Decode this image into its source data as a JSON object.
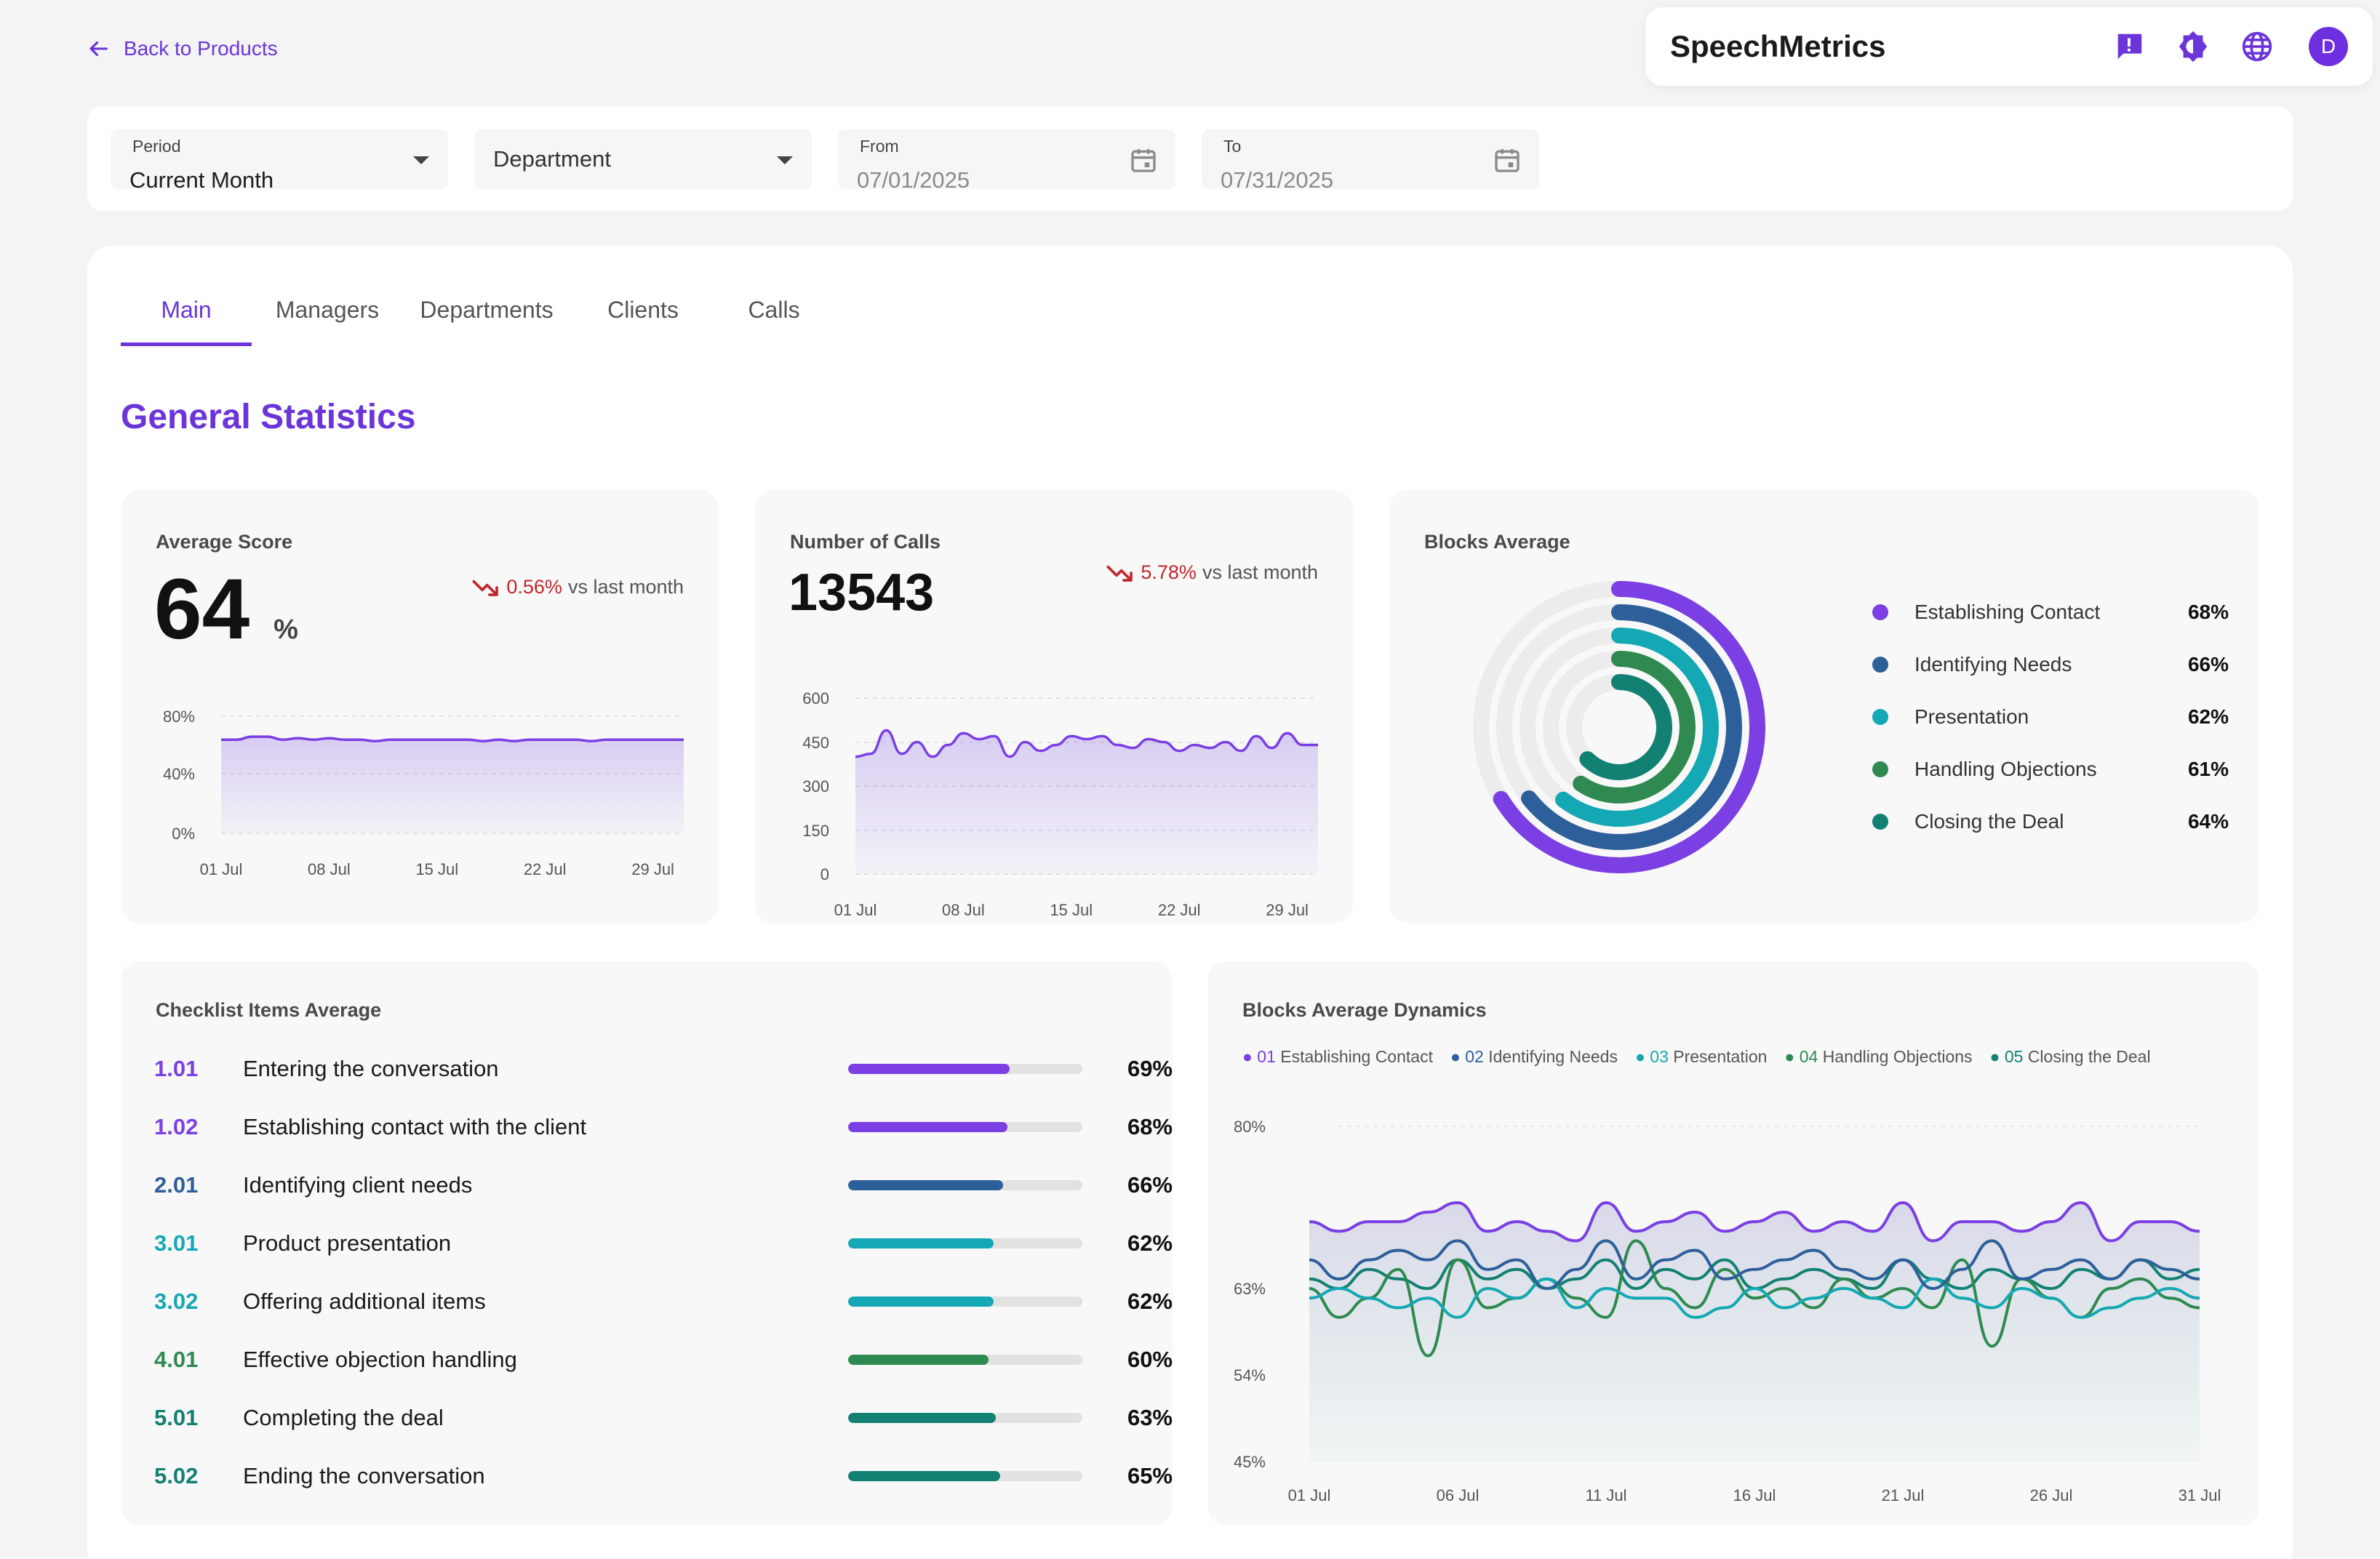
{
  "nav": {
    "back_label": "Back to Products"
  },
  "brandbar": {
    "brand": "SpeechMetrics",
    "icons": [
      "feedback-icon",
      "theme-icon",
      "globe-icon"
    ],
    "avatar_initial": "D"
  },
  "filters": {
    "period_label": "Period",
    "period_value": "Current Month",
    "department_placeholder": "Department",
    "from_label": "From",
    "from_value": "07/01/2025",
    "to_label": "To",
    "to_value": "07/31/2025"
  },
  "tabs": [
    "Main",
    "Managers",
    "Departments",
    "Clients",
    "Calls"
  ],
  "active_tab": "Main",
  "section_title": "General Statistics",
  "avg_score": {
    "title": "Average Score",
    "value": "64",
    "unit": "%",
    "delta": "0.56%",
    "delta_suffix": "vs last month",
    "y_ticks": [
      "80%",
      "40%",
      "0%"
    ],
    "x_ticks": [
      "01 Jul",
      "08 Jul",
      "15 Jul",
      "22 Jul",
      "29 Jul"
    ]
  },
  "calls": {
    "title": "Number of Calls",
    "value": "13543",
    "delta": "5.78%",
    "delta_suffix": "vs last month",
    "y_ticks": [
      "600",
      "450",
      "300",
      "150",
      "0"
    ],
    "x_ticks": [
      "01 Jul",
      "08 Jul",
      "15 Jul",
      "22 Jul",
      "29 Jul"
    ]
  },
  "blocks_avg": {
    "title": "Blocks Average",
    "items": [
      {
        "label": "Establishing Contact",
        "pct": "68%",
        "value": 68,
        "color": "#7b3fe4"
      },
      {
        "label": "Identifying Needs",
        "pct": "66%",
        "value": 66,
        "color": "#2d5f9a"
      },
      {
        "label": "Presentation",
        "pct": "62%",
        "value": 62,
        "color": "#14a8b4"
      },
      {
        "label": "Handling Objections",
        "pct": "61%",
        "value": 61,
        "color": "#2e8a50"
      },
      {
        "label": "Closing the Deal",
        "pct": "64%",
        "value": 64,
        "color": "#128073"
      }
    ]
  },
  "checklist": {
    "title": "Checklist Items Average",
    "rows": [
      {
        "num": "1.01",
        "text": "Entering the conversation",
        "pct": "69%",
        "value": 69,
        "color": "#7b3fe4"
      },
      {
        "num": "1.02",
        "text": "Establishing contact with the client",
        "pct": "68%",
        "value": 68,
        "color": "#7b3fe4"
      },
      {
        "num": "2.01",
        "text": "Identifying client needs",
        "pct": "66%",
        "value": 66,
        "color": "#2d5f9a"
      },
      {
        "num": "3.01",
        "text": "Product presentation",
        "pct": "62%",
        "value": 62,
        "color": "#14a8b4"
      },
      {
        "num": "3.02",
        "text": "Offering additional items",
        "pct": "62%",
        "value": 62,
        "color": "#14a8b4"
      },
      {
        "num": "4.01",
        "text": "Effective objection handling",
        "pct": "60%",
        "value": 60,
        "color": "#2e8a50"
      },
      {
        "num": "5.01",
        "text": "Completing the deal",
        "pct": "63%",
        "value": 63,
        "color": "#128073"
      },
      {
        "num": "5.02",
        "text": "Ending the conversation",
        "pct": "65%",
        "value": 65,
        "color": "#128073"
      }
    ]
  },
  "dynamics": {
    "title": "Blocks Average Dynamics",
    "legend": [
      {
        "num": "01",
        "label": "Establishing Contact",
        "color": "#7b3fe4"
      },
      {
        "num": "02",
        "label": "Identifying Needs",
        "color": "#2d5f9a"
      },
      {
        "num": "03",
        "label": "Presentation",
        "color": "#14a8b4"
      },
      {
        "num": "04",
        "label": "Handling Objections",
        "color": "#2e8a50"
      },
      {
        "num": "05",
        "label": "Closing the Deal",
        "color": "#128073"
      }
    ],
    "y_ticks": [
      "80%",
      "63%",
      "54%",
      "45%"
    ],
    "x_ticks": [
      "01 Jul",
      "06 Jul",
      "11 Jul",
      "16 Jul",
      "21 Jul",
      "26 Jul",
      "31 Jul"
    ]
  },
  "chart_data": [
    {
      "type": "area",
      "title": "Average Score",
      "x": [
        "01 Jul",
        "02 Jul",
        "03 Jul",
        "04 Jul",
        "05 Jul",
        "06 Jul",
        "07 Jul",
        "08 Jul",
        "09 Jul",
        "10 Jul",
        "11 Jul",
        "12 Jul",
        "13 Jul",
        "14 Jul",
        "15 Jul",
        "16 Jul",
        "17 Jul",
        "18 Jul",
        "19 Jul",
        "20 Jul",
        "21 Jul",
        "22 Jul",
        "23 Jul",
        "24 Jul",
        "25 Jul",
        "26 Jul",
        "27 Jul",
        "28 Jul",
        "29 Jul",
        "30 Jul",
        "31 Jul"
      ],
      "values": [
        64,
        64,
        66,
        66,
        64,
        65,
        64,
        65,
        64,
        64,
        63,
        64,
        64,
        64,
        64,
        64,
        64,
        63,
        64,
        63,
        64,
        64,
        64,
        64,
        63,
        64,
        64,
        64,
        64,
        64,
        64
      ],
      "ylim": [
        0,
        80
      ]
    },
    {
      "type": "area",
      "title": "Number of Calls",
      "x": [
        "01 Jul",
        "02 Jul",
        "03 Jul",
        "04 Jul",
        "05 Jul",
        "06 Jul",
        "07 Jul",
        "08 Jul",
        "09 Jul",
        "10 Jul",
        "11 Jul",
        "12 Jul",
        "13 Jul",
        "14 Jul",
        "15 Jul",
        "16 Jul",
        "17 Jul",
        "18 Jul",
        "19 Jul",
        "20 Jul",
        "21 Jul",
        "22 Jul",
        "23 Jul",
        "24 Jul",
        "25 Jul",
        "26 Jul",
        "27 Jul",
        "28 Jul",
        "29 Jul",
        "30 Jul",
        "31 Jul"
      ],
      "values": [
        400,
        410,
        490,
        410,
        450,
        400,
        440,
        480,
        460,
        470,
        400,
        450,
        420,
        440,
        470,
        460,
        470,
        440,
        430,
        460,
        450,
        420,
        440,
        430,
        450,
        420,
        470,
        430,
        480,
        440,
        440
      ],
      "ylim": [
        0,
        600
      ]
    },
    {
      "type": "line",
      "title": "Blocks Average Dynamics",
      "x": [
        "01 Jul",
        "02 Jul",
        "03 Jul",
        "04 Jul",
        "05 Jul",
        "06 Jul",
        "07 Jul",
        "08 Jul",
        "09 Jul",
        "10 Jul",
        "11 Jul",
        "12 Jul",
        "13 Jul",
        "14 Jul",
        "15 Jul",
        "16 Jul",
        "17 Jul",
        "18 Jul",
        "19 Jul",
        "20 Jul",
        "21 Jul",
        "22 Jul",
        "23 Jul",
        "24 Jul",
        "25 Jul",
        "26 Jul",
        "27 Jul",
        "28 Jul",
        "29 Jul",
        "30 Jul",
        "31 Jul"
      ],
      "ylim": [
        45,
        80
      ],
      "series": [
        {
          "name": "Establishing Contact",
          "values": [
            70,
            69,
            70,
            70,
            71,
            72,
            69,
            70,
            69,
            68,
            72,
            69,
            70,
            71,
            69,
            70,
            71,
            69,
            70,
            69,
            72,
            68,
            70,
            70,
            69,
            70,
            72,
            68,
            70,
            70,
            69
          ]
        },
        {
          "name": "Identifying Needs",
          "values": [
            66,
            64,
            66,
            67,
            66,
            68,
            65,
            66,
            63,
            65,
            68,
            64,
            66,
            67,
            64,
            65,
            66,
            67,
            65,
            64,
            66,
            63,
            65,
            68,
            64,
            65,
            66,
            64,
            66,
            65,
            64
          ]
        },
        {
          "name": "Presentation",
          "values": [
            62,
            63,
            62,
            61,
            62,
            60,
            63,
            62,
            64,
            61,
            63,
            62,
            62,
            60,
            61,
            63,
            61,
            62,
            63,
            62,
            61,
            64,
            62,
            61,
            63,
            62,
            60,
            61,
            62,
            63,
            62
          ]
        },
        {
          "name": "Handling Objections",
          "values": [
            63,
            60,
            62,
            65,
            56,
            66,
            61,
            62,
            64,
            62,
            60,
            68,
            63,
            61,
            65,
            62,
            63,
            61,
            64,
            62,
            63,
            61,
            66,
            57,
            64,
            62,
            60,
            63,
            64,
            62,
            61
          ]
        },
        {
          "name": "Closing the Deal",
          "values": [
            64,
            63,
            65,
            64,
            63,
            66,
            64,
            65,
            63,
            64,
            66,
            63,
            65,
            64,
            66,
            63,
            64,
            65,
            64,
            63,
            66,
            64,
            63,
            65,
            64,
            63,
            65,
            64,
            66,
            64,
            65
          ]
        }
      ]
    }
  ]
}
